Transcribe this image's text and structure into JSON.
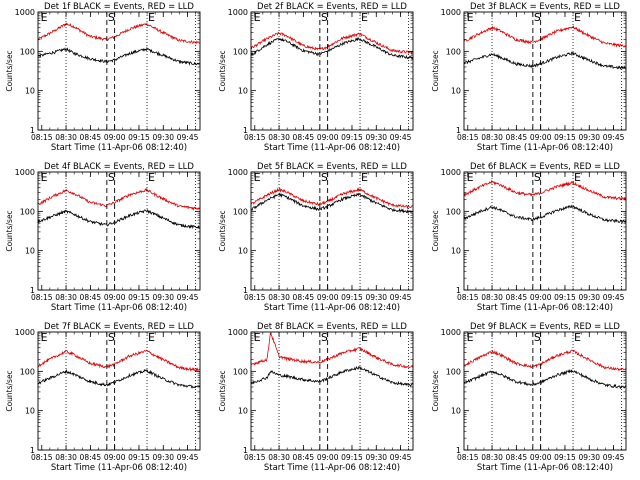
{
  "figure": {
    "y_axis_label": "Counts/sec",
    "x_axis_label": "Start Time (11-Apr-06 08:12:40)",
    "legend_note": "BLACK = Events, RED = LLD",
    "x_tick_labels": [
      "08:15",
      "08:30",
      "08:45",
      "09:00",
      "09:15",
      "09:30",
      "09:45"
    ],
    "y_tick_labels": [
      "1",
      "10",
      "100",
      "1000"
    ],
    "marker_labels": [
      "E",
      "S",
      "E"
    ],
    "colors": {
      "events": "#000000",
      "lld": "#dd0000",
      "axes": "#000000",
      "background": "#ffffff"
    }
  },
  "chart_data": [
    {
      "type": "line",
      "title": "Det 1f BLACK = Events, RED = LLD",
      "xlabel": "Start Time (11-Apr-06 08:12:40)",
      "ylabel": "Counts/sec",
      "xlim": [
        "08:12:40",
        "09:52:40"
      ],
      "ylim": [
        1,
        1000
      ],
      "yscale": "log",
      "time_min": [
        0,
        10,
        17.3,
        22,
        32,
        42,
        47,
        57,
        67,
        77,
        87,
        97,
        100
      ],
      "series": [
        {
          "name": "LLD",
          "color": "red",
          "values": [
            200,
            330,
            500,
            430,
            240,
            200,
            230,
            380,
            500,
            300,
            190,
            170,
            170
          ]
        },
        {
          "name": "Events",
          "color": "black",
          "values": [
            75,
            95,
            115,
            90,
            65,
            55,
            60,
            90,
            115,
            80,
            55,
            48,
            48
          ]
        }
      ],
      "vlines_dotted_min": [
        17.3,
        67.3,
        97.3
      ],
      "vlines_dashed_min": [
        42.5,
        47.3
      ]
    },
    {
      "type": "line",
      "title": "Det 2f BLACK = Events, RED = LLD",
      "xlabel": "Start Time (11-Apr-06 08:12:40)",
      "ylabel": "Counts/sec",
      "xlim": [
        "08:12:40",
        "09:52:40"
      ],
      "ylim": [
        1,
        1000
      ],
      "yscale": "log",
      "time_min": [
        0,
        10,
        17.3,
        22,
        32,
        42,
        47,
        57,
        67,
        77,
        87,
        97,
        100
      ],
      "series": [
        {
          "name": "LLD",
          "color": "red",
          "values": [
            120,
            210,
            290,
            250,
            140,
            110,
            130,
            220,
            280,
            170,
            105,
            95,
            95
          ]
        },
        {
          "name": "Events",
          "color": "black",
          "values": [
            80,
            150,
            210,
            180,
            105,
            85,
            100,
            160,
            210,
            130,
            80,
            70,
            70
          ]
        }
      ],
      "vlines_dotted_min": [
        17.3,
        67.3,
        97.3
      ],
      "vlines_dashed_min": [
        42.5,
        47.3
      ]
    },
    {
      "type": "line",
      "title": "Det 3f BLACK = Events, RED = LLD",
      "xlabel": "Start Time (11-Apr-06 08:12:40)",
      "ylabel": "Counts/sec",
      "xlim": [
        "08:12:40",
        "09:52:40"
      ],
      "ylim": [
        1,
        1000
      ],
      "yscale": "log",
      "time_min": [
        0,
        10,
        17.3,
        22,
        32,
        42,
        47,
        57,
        67,
        77,
        87,
        97,
        100
      ],
      "series": [
        {
          "name": "LLD",
          "color": "red",
          "values": [
            180,
            290,
            400,
            340,
            200,
            170,
            200,
            320,
            420,
            250,
            160,
            140,
            140
          ]
        },
        {
          "name": "Events",
          "color": "black",
          "values": [
            50,
            68,
            85,
            72,
            48,
            42,
            48,
            70,
            90,
            60,
            42,
            38,
            38
          ]
        }
      ],
      "vlines_dotted_min": [
        17.3,
        67.3,
        97.3
      ],
      "vlines_dashed_min": [
        42.5,
        47.3
      ]
    },
    {
      "type": "line",
      "title": "Det 4f BLACK = Events, RED = LLD",
      "xlabel": "Start Time (11-Apr-06 08:12:40)",
      "ylabel": "Counts/sec",
      "xlim": [
        "08:12:40",
        "09:52:40"
      ],
      "ylim": [
        1,
        1000
      ],
      "yscale": "log",
      "time_min": [
        0,
        10,
        17.3,
        22,
        32,
        42,
        47,
        57,
        67,
        77,
        87,
        97,
        100
      ],
      "series": [
        {
          "name": "LLD",
          "color": "red",
          "values": [
            150,
            250,
            340,
            290,
            170,
            140,
            165,
            270,
            350,
            210,
            135,
            120,
            120
          ]
        },
        {
          "name": "Events",
          "color": "black",
          "values": [
            55,
            78,
            100,
            85,
            55,
            45,
            52,
            80,
            105,
            68,
            45,
            40,
            40
          ]
        }
      ],
      "vlines_dotted_min": [
        17.3,
        67.3,
        97.3
      ],
      "vlines_dashed_min": [
        42.5,
        47.3
      ]
    },
    {
      "type": "line",
      "title": "Det 5f BLACK = Events, RED = LLD",
      "xlabel": "Start Time (11-Apr-06 08:12:40)",
      "ylabel": "Counts/sec",
      "xlim": [
        "08:12:40",
        "09:52:40"
      ],
      "ylim": [
        1,
        1000
      ],
      "yscale": "log",
      "time_min": [
        0,
        10,
        17.3,
        22,
        32,
        42,
        47,
        57,
        67,
        77,
        87,
        97,
        100
      ],
      "series": [
        {
          "name": "LLD",
          "color": "red",
          "values": [
            150,
            260,
            360,
            310,
            185,
            150,
            175,
            280,
            360,
            220,
            145,
            130,
            130
          ]
        },
        {
          "name": "Events",
          "color": "black",
          "values": [
            110,
            195,
            270,
            230,
            140,
            112,
            130,
            210,
            270,
            165,
            110,
            100,
            100
          ]
        }
      ],
      "vlines_dotted_min": [
        17.3,
        67.3,
        97.3
      ],
      "vlines_dashed_min": [
        42.5,
        47.3
      ]
    },
    {
      "type": "line",
      "title": "Det 6f BLACK = Events, RED = LLD",
      "xlabel": "Start Time (11-Apr-06 08:12:40)",
      "ylabel": "Counts/sec",
      "xlim": [
        "08:12:40",
        "09:52:40"
      ],
      "ylim": [
        1,
        1000
      ],
      "yscale": "log",
      "time_min": [
        0,
        10,
        17.3,
        22,
        32,
        42,
        47,
        57,
        67,
        77,
        87,
        97,
        100
      ],
      "series": [
        {
          "name": "LLD",
          "color": "red",
          "values": [
            260,
            420,
            560,
            480,
            300,
            260,
            290,
            420,
            540,
            340,
            230,
            210,
            210
          ]
        },
        {
          "name": "Events",
          "color": "black",
          "values": [
            65,
            100,
            130,
            110,
            72,
            62,
            70,
            105,
            135,
            85,
            60,
            55,
            55
          ]
        }
      ],
      "vlines_dotted_min": [
        17.3,
        67.3,
        97.3
      ],
      "vlines_dashed_min": [
        42.5,
        47.3
      ]
    },
    {
      "type": "line",
      "title": "Det 7f BLACK = Events, RED = LLD",
      "xlabel": "Start Time (11-Apr-06 08:12:40)",
      "ylabel": "Counts/sec",
      "xlim": [
        "08:12:40",
        "09:52:40"
      ],
      "ylim": [
        1,
        1000
      ],
      "yscale": "log",
      "time_min": [
        0,
        10,
        17.3,
        22,
        32,
        42,
        47,
        57,
        67,
        77,
        87,
        97,
        100
      ],
      "series": [
        {
          "name": "LLD",
          "color": "red",
          "values": [
            140,
            230,
            320,
            270,
            160,
            130,
            150,
            250,
            330,
            200,
            125,
            110,
            110
          ]
        },
        {
          "name": "Events",
          "color": "black",
          "values": [
            50,
            75,
            100,
            85,
            55,
            45,
            52,
            80,
            105,
            65,
            45,
            40,
            40
          ]
        }
      ],
      "vlines_dotted_min": [
        17.3,
        67.3,
        97.3
      ],
      "vlines_dashed_min": [
        42.5,
        47.3
      ]
    },
    {
      "type": "line",
      "title": "Det 8f BLACK = Events, RED = LLD",
      "xlabel": "Start Time (11-Apr-06 08:12:40)",
      "ylabel": "Counts/sec",
      "xlim": [
        "08:12:40",
        "09:52:40"
      ],
      "ylim": [
        1,
        1000
      ],
      "yscale": "log",
      "time_min": [
        0,
        10,
        12,
        17.3,
        22,
        32,
        42,
        47,
        57,
        67,
        77,
        87,
        97,
        100
      ],
      "series": [
        {
          "name": "LLD",
          "color": "red",
          "values": [
            150,
            200,
            1000,
            240,
            210,
            180,
            170,
            200,
            300,
            380,
            230,
            150,
            130,
            130
          ]
        },
        {
          "name": "Events",
          "color": "black",
          "values": [
            50,
            70,
            100,
            80,
            75,
            62,
            55,
            65,
            100,
            125,
            80,
            52,
            45,
            45
          ]
        }
      ],
      "vlines_dotted_min": [
        17.3,
        67.3,
        97.3
      ],
      "vlines_dashed_min": [
        42.5,
        47.3
      ]
    },
    {
      "type": "line",
      "title": "Det 9f BLACK = Events, RED = LLD",
      "xlabel": "Start Time (11-Apr-06 08:12:40)",
      "ylabel": "Counts/sec",
      "xlim": [
        "08:12:40",
        "09:52:40"
      ],
      "ylim": [
        1,
        1000
      ],
      "yscale": "log",
      "time_min": [
        0,
        10,
        17.3,
        22,
        32,
        42,
        47,
        57,
        67,
        77,
        87,
        97,
        100
      ],
      "series": [
        {
          "name": "LLD",
          "color": "red",
          "values": [
            140,
            230,
            320,
            270,
            160,
            130,
            150,
            250,
            330,
            200,
            125,
            110,
            110
          ]
        },
        {
          "name": "Events",
          "color": "black",
          "values": [
            50,
            75,
            100,
            85,
            55,
            45,
            52,
            80,
            105,
            65,
            45,
            40,
            40
          ]
        }
      ],
      "vlines_dotted_min": [
        17.3,
        67.3,
        97.3
      ],
      "vlines_dashed_min": [
        42.5,
        47.3
      ]
    }
  ]
}
